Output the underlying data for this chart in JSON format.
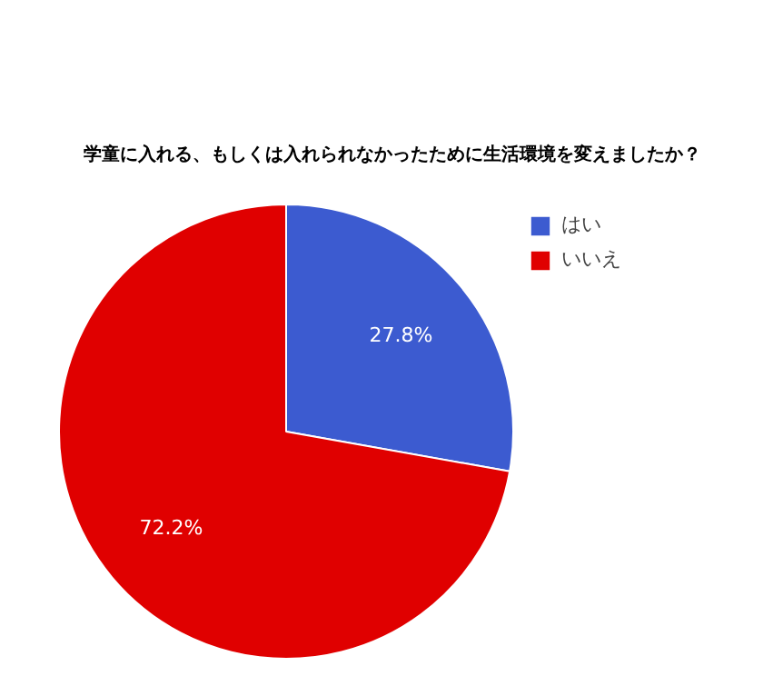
{
  "chart_data": {
    "type": "pie",
    "title": "学童に入れる、もしくは入れられなかったために生活環境を変えましたか？",
    "categories": [
      "はい",
      "いいえ"
    ],
    "values": [
      27.8,
      72.2
    ],
    "colors": [
      "#3c5bd0",
      "#e00000"
    ],
    "value_labels": [
      "27.8%",
      "72.2%"
    ],
    "legend": "top right"
  }
}
